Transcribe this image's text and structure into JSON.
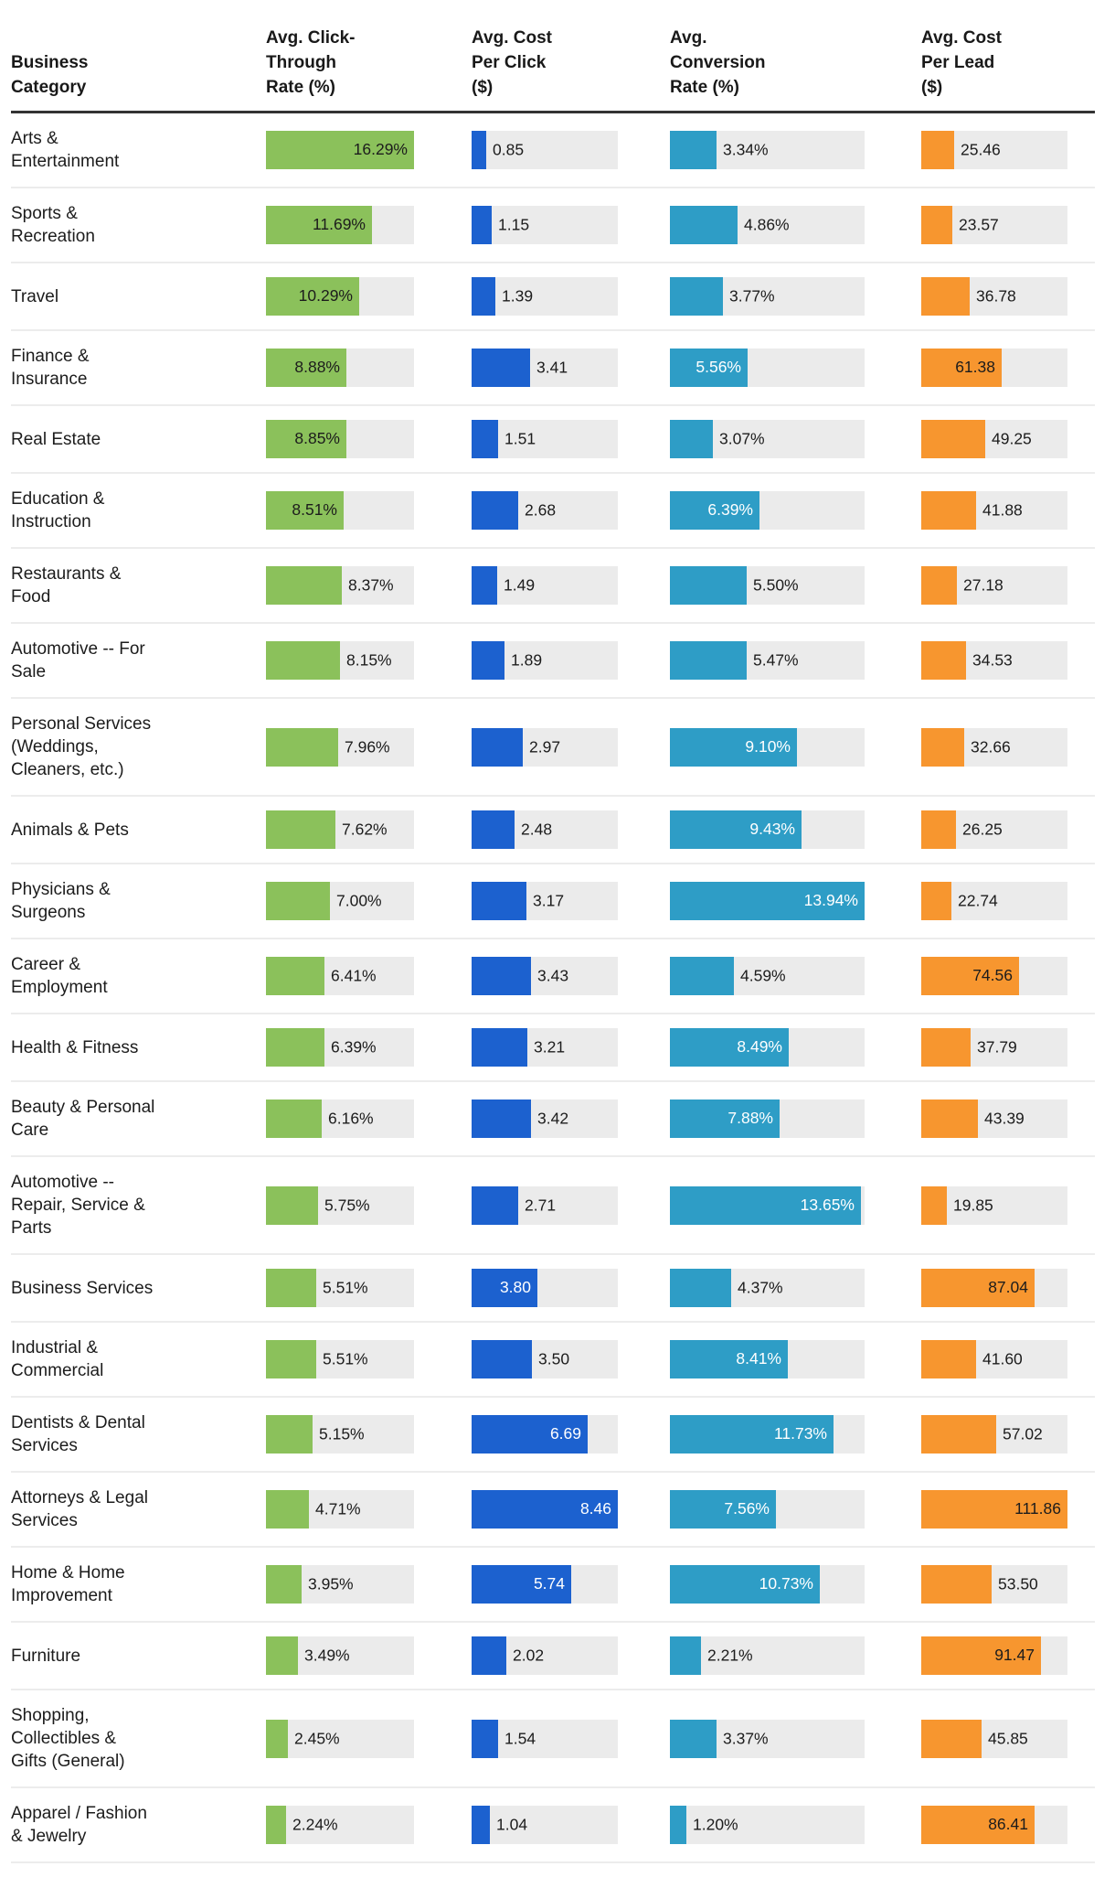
{
  "table": {
    "columns": [
      {
        "id": "category",
        "label": "Business Category",
        "header": "Business\nCategory"
      },
      {
        "id": "ctr",
        "label": "Avg. Click-Through Rate (%)",
        "header": "Avg. Click-\nThrough\nRate (%)",
        "color": "#8bc15b",
        "inside_text": "#1c1c1c",
        "max": 16.29
      },
      {
        "id": "cpc",
        "label": "Avg. Cost Per Click ($)",
        "header": "Avg. Cost\nPer Click\n($)",
        "color": "#1c61cf",
        "inside_text": "#ffffff",
        "max": 8.46
      },
      {
        "id": "cvr",
        "label": "Avg. Conversion Rate (%)",
        "header": "Avg.\nConversion\nRate (%)",
        "color": "#2e9dc6",
        "inside_text": "#ffffff",
        "max": 13.94
      },
      {
        "id": "cpl",
        "label": "Avg. Cost Per Lead ($)",
        "header": "Avg. Cost\nPer Lead\n($)",
        "color": "#f7962f",
        "inside_text": "#1c1c1c",
        "max": 111.86
      }
    ],
    "track_gray": "#ebebeb",
    "rows": [
      {
        "category": "Arts &\nEntertainment",
        "ctr": {
          "text": "16.29%",
          "value": 16.29,
          "inside": true
        },
        "cpc": {
          "text": "0.85",
          "value": 0.85,
          "inside": false
        },
        "cvr": {
          "text": "3.34%",
          "value": 3.34,
          "inside": false
        },
        "cpl": {
          "text": "25.46",
          "value": 25.46,
          "inside": false
        }
      },
      {
        "category": "Sports &\nRecreation",
        "ctr": {
          "text": "11.69%",
          "value": 11.69,
          "inside": true
        },
        "cpc": {
          "text": "1.15",
          "value": 1.15,
          "inside": false
        },
        "cvr": {
          "text": "4.86%",
          "value": 4.86,
          "inside": false
        },
        "cpl": {
          "text": "23.57",
          "value": 23.57,
          "inside": false
        }
      },
      {
        "category": "Travel",
        "ctr": {
          "text": "10.29%",
          "value": 10.29,
          "inside": true
        },
        "cpc": {
          "text": "1.39",
          "value": 1.39,
          "inside": false
        },
        "cvr": {
          "text": "3.77%",
          "value": 3.77,
          "inside": false
        },
        "cpl": {
          "text": "36.78",
          "value": 36.78,
          "inside": false
        }
      },
      {
        "category": "Finance &\nInsurance",
        "ctr": {
          "text": "8.88%",
          "value": 8.88,
          "inside": true
        },
        "cpc": {
          "text": "3.41",
          "value": 3.41,
          "inside": false
        },
        "cvr": {
          "text": "5.56%",
          "value": 5.56,
          "inside": true
        },
        "cpl": {
          "text": "61.38",
          "value": 61.38,
          "inside": true
        }
      },
      {
        "category": "Real Estate",
        "ctr": {
          "text": "8.85%",
          "value": 8.85,
          "inside": true
        },
        "cpc": {
          "text": "1.51",
          "value": 1.51,
          "inside": false
        },
        "cvr": {
          "text": "3.07%",
          "value": 3.07,
          "inside": false
        },
        "cpl": {
          "text": "49.25",
          "value": 49.25,
          "inside": false
        }
      },
      {
        "category": "Education &\nInstruction",
        "ctr": {
          "text": "8.51%",
          "value": 8.51,
          "inside": true
        },
        "cpc": {
          "text": "2.68",
          "value": 2.68,
          "inside": false
        },
        "cvr": {
          "text": "6.39%",
          "value": 6.39,
          "inside": true
        },
        "cpl": {
          "text": "41.88",
          "value": 41.88,
          "inside": false
        }
      },
      {
        "category": "Restaurants &\nFood",
        "ctr": {
          "text": "8.37%",
          "value": 8.37,
          "inside": false
        },
        "cpc": {
          "text": "1.49",
          "value": 1.49,
          "inside": false
        },
        "cvr": {
          "text": "5.50%",
          "value": 5.5,
          "inside": false
        },
        "cpl": {
          "text": "27.18",
          "value": 27.18,
          "inside": false
        }
      },
      {
        "category": "Automotive -- For\nSale",
        "ctr": {
          "text": "8.15%",
          "value": 8.15,
          "inside": false
        },
        "cpc": {
          "text": "1.89",
          "value": 1.89,
          "inside": false
        },
        "cvr": {
          "text": "5.47%",
          "value": 5.47,
          "inside": false
        },
        "cpl": {
          "text": "34.53",
          "value": 34.53,
          "inside": false
        }
      },
      {
        "category": "Personal Services\n(Weddings,\nCleaners, etc.)",
        "ctr": {
          "text": "7.96%",
          "value": 7.96,
          "inside": false
        },
        "cpc": {
          "text": "2.97",
          "value": 2.97,
          "inside": false
        },
        "cvr": {
          "text": "9.10%",
          "value": 9.1,
          "inside": true
        },
        "cpl": {
          "text": "32.66",
          "value": 32.66,
          "inside": false
        }
      },
      {
        "category": "Animals & Pets",
        "ctr": {
          "text": "7.62%",
          "value": 7.62,
          "inside": false
        },
        "cpc": {
          "text": "2.48",
          "value": 2.48,
          "inside": false
        },
        "cvr": {
          "text": "9.43%",
          "value": 9.43,
          "inside": true
        },
        "cpl": {
          "text": "26.25",
          "value": 26.25,
          "inside": false
        }
      },
      {
        "category": "Physicians &\nSurgeons",
        "ctr": {
          "text": "7.00%",
          "value": 7.0,
          "inside": false
        },
        "cpc": {
          "text": "3.17",
          "value": 3.17,
          "inside": false
        },
        "cvr": {
          "text": "13.94%",
          "value": 13.94,
          "inside": true
        },
        "cpl": {
          "text": "22.74",
          "value": 22.74,
          "inside": false
        }
      },
      {
        "category": "Career &\nEmployment",
        "ctr": {
          "text": "6.41%",
          "value": 6.41,
          "inside": false
        },
        "cpc": {
          "text": "3.43",
          "value": 3.43,
          "inside": false
        },
        "cvr": {
          "text": "4.59%",
          "value": 4.59,
          "inside": false
        },
        "cpl": {
          "text": "74.56",
          "value": 74.56,
          "inside": true
        }
      },
      {
        "category": "Health & Fitness",
        "ctr": {
          "text": "6.39%",
          "value": 6.39,
          "inside": false
        },
        "cpc": {
          "text": "3.21",
          "value": 3.21,
          "inside": false
        },
        "cvr": {
          "text": "8.49%",
          "value": 8.49,
          "inside": true
        },
        "cpl": {
          "text": "37.79",
          "value": 37.79,
          "inside": false
        }
      },
      {
        "category": "Beauty & Personal\nCare",
        "ctr": {
          "text": "6.16%",
          "value": 6.16,
          "inside": false
        },
        "cpc": {
          "text": "3.42",
          "value": 3.42,
          "inside": false
        },
        "cvr": {
          "text": "7.88%",
          "value": 7.88,
          "inside": true
        },
        "cpl": {
          "text": "43.39",
          "value": 43.39,
          "inside": false
        }
      },
      {
        "category": "Automotive --\nRepair, Service &\nParts",
        "ctr": {
          "text": "5.75%",
          "value": 5.75,
          "inside": false
        },
        "cpc": {
          "text": "2.71",
          "value": 2.71,
          "inside": false
        },
        "cvr": {
          "text": "13.65%",
          "value": 13.65,
          "inside": true
        },
        "cpl": {
          "text": "19.85",
          "value": 19.85,
          "inside": false
        }
      },
      {
        "category": "Business Services",
        "ctr": {
          "text": "5.51%",
          "value": 5.51,
          "inside": false
        },
        "cpc": {
          "text": "3.80",
          "value": 3.8,
          "inside": true
        },
        "cvr": {
          "text": "4.37%",
          "value": 4.37,
          "inside": false
        },
        "cpl": {
          "text": "87.04",
          "value": 87.04,
          "inside": true
        }
      },
      {
        "category": "Industrial &\nCommercial",
        "ctr": {
          "text": "5.51%",
          "value": 5.51,
          "inside": false
        },
        "cpc": {
          "text": "3.50",
          "value": 3.5,
          "inside": false
        },
        "cvr": {
          "text": "8.41%",
          "value": 8.41,
          "inside": true
        },
        "cpl": {
          "text": "41.60",
          "value": 41.6,
          "inside": false
        }
      },
      {
        "category": "Dentists & Dental\nServices",
        "ctr": {
          "text": "5.15%",
          "value": 5.15,
          "inside": false
        },
        "cpc": {
          "text": "6.69",
          "value": 6.69,
          "inside": true
        },
        "cvr": {
          "text": "11.73%",
          "value": 11.73,
          "inside": true
        },
        "cpl": {
          "text": "57.02",
          "value": 57.02,
          "inside": false
        }
      },
      {
        "category": "Attorneys & Legal\nServices",
        "ctr": {
          "text": "4.71%",
          "value": 4.71,
          "inside": false
        },
        "cpc": {
          "text": "8.46",
          "value": 8.46,
          "inside": true
        },
        "cvr": {
          "text": "7.56%",
          "value": 7.56,
          "inside": true
        },
        "cpl": {
          "text": "111.86",
          "value": 111.86,
          "inside": true
        }
      },
      {
        "category": "Home & Home\nImprovement",
        "ctr": {
          "text": "3.95%",
          "value": 3.95,
          "inside": false
        },
        "cpc": {
          "text": "5.74",
          "value": 5.74,
          "inside": true
        },
        "cvr": {
          "text": "10.73%",
          "value": 10.73,
          "inside": true
        },
        "cpl": {
          "text": "53.50",
          "value": 53.5,
          "inside": false
        }
      },
      {
        "category": "Furniture",
        "ctr": {
          "text": "3.49%",
          "value": 3.49,
          "inside": false
        },
        "cpc": {
          "text": "2.02",
          "value": 2.02,
          "inside": false
        },
        "cvr": {
          "text": "2.21%",
          "value": 2.21,
          "inside": false
        },
        "cpl": {
          "text": "91.47",
          "value": 91.47,
          "inside": true
        }
      },
      {
        "category": "Shopping,\nCollectibles &\nGifts (General)",
        "ctr": {
          "text": "2.45%",
          "value": 2.45,
          "inside": false
        },
        "cpc": {
          "text": "1.54",
          "value": 1.54,
          "inside": false
        },
        "cvr": {
          "text": "3.37%",
          "value": 3.37,
          "inside": false
        },
        "cpl": {
          "text": "45.85",
          "value": 45.85,
          "inside": false
        }
      },
      {
        "category": "Apparel / Fashion\n& Jewelry",
        "ctr": {
          "text": "2.24%",
          "value": 2.24,
          "inside": false
        },
        "cpc": {
          "text": "1.04",
          "value": 1.04,
          "inside": false
        },
        "cvr": {
          "text": "1.20%",
          "value": 1.2,
          "inside": false
        },
        "cpl": {
          "text": "86.41",
          "value": 86.41,
          "inside": true
        }
      }
    ]
  },
  "chart_data": {
    "type": "bar",
    "layout": "table-of-horizontal-bars",
    "categories": [
      "Arts & Entertainment",
      "Sports & Recreation",
      "Travel",
      "Finance & Insurance",
      "Real Estate",
      "Education & Instruction",
      "Restaurants & Food",
      "Automotive -- For Sale",
      "Personal Services (Weddings, Cleaners, etc.)",
      "Animals & Pets",
      "Physicians & Surgeons",
      "Career & Employment",
      "Health & Fitness",
      "Beauty & Personal Care",
      "Automotive -- Repair, Service & Parts",
      "Business Services",
      "Industrial & Commercial",
      "Dentists & Dental Services",
      "Attorneys & Legal Services",
      "Home & Home Improvement",
      "Furniture",
      "Shopping, Collectibles & Gifts (General)",
      "Apparel / Fashion & Jewelry"
    ],
    "series": [
      {
        "name": "Avg. Click-Through Rate (%)",
        "color": "#8bc15b",
        "axis_max": 16.29,
        "values": [
          16.29,
          11.69,
          10.29,
          8.88,
          8.85,
          8.51,
          8.37,
          8.15,
          7.96,
          7.62,
          7.0,
          6.41,
          6.39,
          6.16,
          5.75,
          5.51,
          5.51,
          5.15,
          4.71,
          3.95,
          3.49,
          2.45,
          2.24
        ]
      },
      {
        "name": "Avg. Cost Per Click ($)",
        "color": "#1c61cf",
        "axis_max": 8.46,
        "values": [
          0.85,
          1.15,
          1.39,
          3.41,
          1.51,
          2.68,
          1.49,
          1.89,
          2.97,
          2.48,
          3.17,
          3.43,
          3.21,
          3.42,
          2.71,
          3.8,
          3.5,
          6.69,
          8.46,
          5.74,
          2.02,
          1.54,
          1.04
        ]
      },
      {
        "name": "Avg. Conversion Rate (%)",
        "color": "#2e9dc6",
        "axis_max": 13.94,
        "values": [
          3.34,
          4.86,
          3.77,
          5.56,
          3.07,
          6.39,
          5.5,
          5.47,
          9.1,
          9.43,
          13.94,
          4.59,
          8.49,
          7.88,
          13.65,
          4.37,
          8.41,
          11.73,
          7.56,
          10.73,
          2.21,
          3.37,
          1.2
        ]
      },
      {
        "name": "Avg. Cost Per Lead ($)",
        "color": "#f7962f",
        "axis_max": 111.86,
        "values": [
          25.46,
          23.57,
          36.78,
          61.38,
          49.25,
          41.88,
          27.18,
          34.53,
          32.66,
          26.25,
          22.74,
          74.56,
          37.79,
          43.39,
          19.85,
          87.04,
          41.6,
          57.02,
          111.86,
          53.5,
          91.47,
          45.85,
          86.41
        ]
      }
    ],
    "legend": "none",
    "grid": "off"
  }
}
